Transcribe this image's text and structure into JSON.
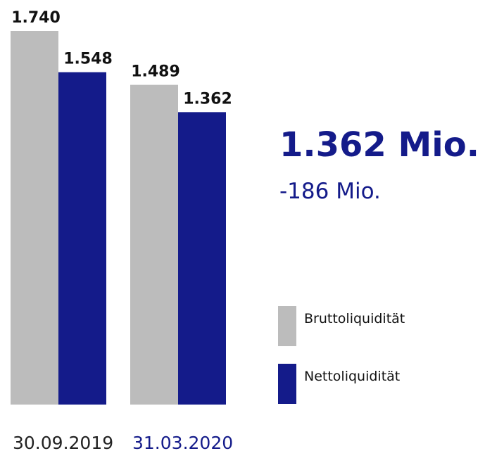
{
  "chart_data": {
    "type": "bar",
    "categories": [
      "30.09.2019",
      "31.03.2020"
    ],
    "series": [
      {
        "name": "Bruttoliquidität",
        "color": "#bcbcbc",
        "values": [
          1740,
          1489
        ],
        "value_labels": [
          "1.740",
          "1.489"
        ]
      },
      {
        "name": "Nettoliquidität",
        "color": "#141b8a",
        "values": [
          1548,
          1362
        ],
        "value_labels": [
          "1.548",
          "1.362"
        ]
      }
    ],
    "ylim": [
      0,
      1740
    ],
    "annotations": [
      "1.362 Mio.",
      "-186 Mio."
    ]
  }
}
